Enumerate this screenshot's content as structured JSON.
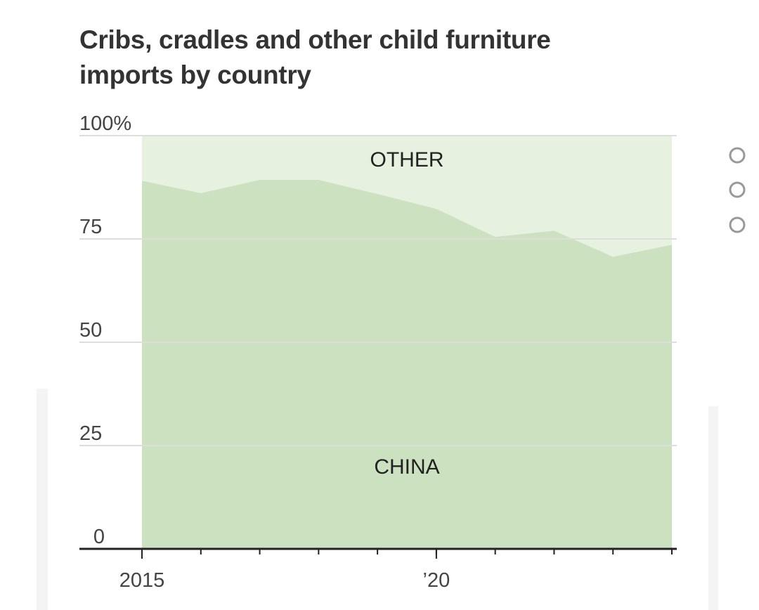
{
  "chart_data": {
    "type": "stacked-area",
    "title": "Cribs, cradles and other child furniture imports by country",
    "x": [
      2015,
      2016,
      2017,
      2018,
      2019,
      2020,
      2021,
      2022,
      2023,
      2024
    ],
    "series": [
      {
        "name": "CHINA",
        "color": "#cce1bf",
        "values": [
          89.1,
          86.1,
          89.3,
          89.3,
          85.9,
          82.3,
          75.5,
          77.0,
          70.7,
          73.6
        ]
      },
      {
        "name": "OTHER",
        "color": "#e6f1df",
        "values": [
          10.9,
          13.9,
          10.7,
          10.7,
          14.1,
          17.7,
          24.5,
          23.0,
          29.3,
          26.4
        ]
      }
    ],
    "xlim": [
      2015,
      2024
    ],
    "xticks": [
      2015,
      {
        "value": 2020,
        "label": "’20"
      }
    ],
    "ylim": [
      0,
      100
    ],
    "yticks": [
      0,
      25,
      50,
      75,
      {
        "value": 100,
        "label": "100%"
      }
    ],
    "grid": true
  }
}
